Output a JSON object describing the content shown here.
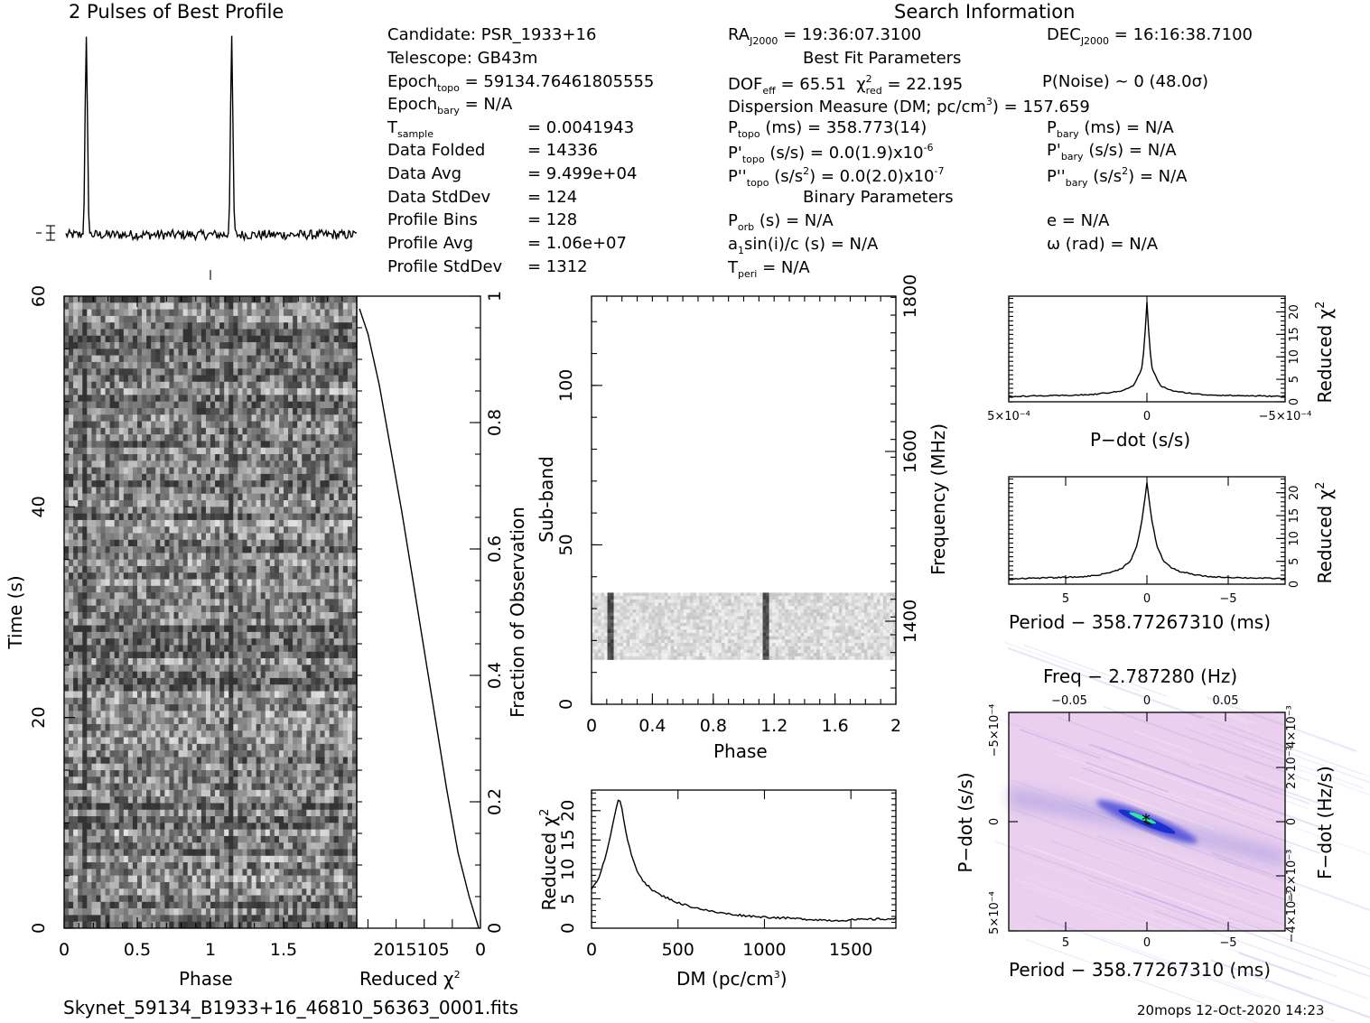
{
  "title": "2 Pulses of Best Profile",
  "search_title": "Search Information",
  "filename": "Skynet_59134_B1933+16_46810_56363_0001.fits",
  "footer": "20mops 12-Oct-2020 14:23",
  "info": {
    "candidate": "Candidate:  PSR_1933+16",
    "telescope": "Telescope:  GB43m",
    "epoch_topo_val": "= 59134.76461805555",
    "epoch_bary_val": "= N/A",
    "left_table": [
      {
        "label": "Data Folded",
        "val": "=   14336"
      },
      {
        "label": "Data Avg",
        "val": "=   9.499e+04"
      },
      {
        "label": "Data StdDev",
        "val": "=   124"
      },
      {
        "label": "Profile Bins",
        "val": "=   128"
      },
      {
        "label": "Profile Avg",
        "val": "=   1.06e+07"
      },
      {
        "label": "Profile StdDev",
        "val": "=   1312"
      }
    ],
    "tsample_val": "=   0.0041943",
    "ra": "= 19:36:07.3100",
    "dec": "= 16:16:38.7100",
    "best_fit": "Best Fit Parameters",
    "dof": "= 65.51",
    "chi2red": "= 22.195",
    "pnoise": "P(Noise) ~ 0   (48.0σ)",
    "dm_text": "Dispersion Measure (DM; pc/cm",
    "dm_val": ") = 157.659",
    "ptopo": "(ms) =  358.773(14)",
    "pbary": "(ms) = N/A",
    "pdtopo": "(s/s) = 0.0(1.9)x10",
    "pdtopo_exp": "-6",
    "pdbary": "(s/s) = N/A",
    "pddtopo_a": "(s/s",
    "pddtopo_b": ") = 0.0(2.0)x10",
    "pddtopo_exp": "-7",
    "pddbary_a": "(s/s",
    "pddbary_b": ") = N/A",
    "binary": "Binary Parameters",
    "porb": "(s) = N/A",
    "a1": "a",
    "a1b": "sin(i)/c (s) = N/A",
    "tperi": "= N/A",
    "ecc": "e = N/A",
    "omega": "ω (rad) = N/A"
  },
  "axes": {
    "time_label": "Time (s)",
    "phase_label": "Phase",
    "redchi_label": "Reduced χ",
    "frac_label": "Fraction of Observation",
    "subband_label": "Sub-band",
    "freq_label": "Frequency (MHz)",
    "dm_label": "DM (pc/cm",
    "pdot_label": "P−dot (s/s)",
    "period_label": "Period − 358.77267310 (ms)",
    "freq_top_label": "Freq − 2.787280 (Hz)",
    "fdot_label": "F−dot (Hz/s)"
  },
  "colors": {
    "grey_map": "#7a7a7a",
    "ppdot_bg": "#ead0ee",
    "ppdot_peak": "#1a2fd0",
    "ppdot_core": "#2fe7a0"
  },
  "chart_data": [
    {
      "id": "profile",
      "type": "line",
      "title": "2 Pulses of Best Profile",
      "xlabel": "Phase",
      "xlim": [
        0,
        2
      ],
      "peaks_at_phase": [
        0.14,
        1.14
      ],
      "baseline_level": 0.08,
      "peak_level": 1.0
    },
    {
      "id": "time_phase",
      "type": "heatmap",
      "xlabel": "Phase",
      "ylabel": "Time (s)",
      "x_ticks": [
        "0",
        "0.5",
        "1",
        "1.5"
      ],
      "y_ticks": [
        "0",
        "20",
        "40",
        "60"
      ],
      "xlim": [
        0,
        2
      ],
      "ylim": [
        0,
        60
      ],
      "pulse_phases": [
        0.13,
        1.14
      ]
    },
    {
      "id": "chi_vs_time",
      "type": "line",
      "xlabel": "Reduced χ2",
      "x_ticks": [
        "20",
        "15",
        "10",
        "5",
        "0"
      ],
      "ylabel": "Fraction of Observation",
      "y_ticks": [
        "0",
        "0.2",
        "0.4",
        "0.6",
        "0.8",
        "1"
      ],
      "xlim": [
        22,
        0
      ],
      "ylim": [
        0,
        1
      ],
      "x": [
        0.3,
        2,
        4,
        6,
        8,
        10,
        12,
        14,
        16,
        18,
        20,
        21.5
      ],
      "y": [
        0.0,
        0.05,
        0.12,
        0.22,
        0.33,
        0.44,
        0.55,
        0.66,
        0.76,
        0.86,
        0.94,
        0.98
      ]
    },
    {
      "id": "subband_phase",
      "type": "heatmap",
      "xlabel": "Phase",
      "ylabel": "Sub-band",
      "y2label": "Frequency (MHz)",
      "x_ticks": [
        "0",
        "0.4",
        "0.8",
        "1.2",
        "1.6",
        "2"
      ],
      "y_ticks": [
        "0",
        "50",
        "100"
      ],
      "y2_ticks": [
        "1400",
        "1600",
        "1800"
      ],
      "xlim": [
        0,
        2
      ],
      "ylim": [
        0,
        128
      ],
      "filled_subbands": [
        14,
        35
      ],
      "pulse_phases": [
        0.13,
        1.14
      ]
    },
    {
      "id": "dm_curve",
      "type": "line",
      "xlabel": "DM (pc/cm3)",
      "ylabel": "Reduced χ2",
      "x_ticks": [
        "0",
        "500",
        "1000",
        "1500"
      ],
      "y_ticks": [
        "0",
        "5",
        "10",
        "15",
        "20"
      ],
      "xlim": [
        0,
        1760
      ],
      "ylim": [
        0,
        23.5
      ],
      "x": [
        0,
        40,
        80,
        110,
        135,
        157,
        175,
        200,
        230,
        260,
        300,
        350,
        400,
        450,
        500,
        600,
        700,
        800,
        900,
        1000,
        1200,
        1400,
        1600,
        1760
      ],
      "y": [
        6.5,
        8.5,
        12,
        16,
        19.5,
        22.2,
        20.5,
        16,
        12.5,
        10,
        8,
        6.5,
        5.6,
        5.0,
        4.3,
        3.5,
        2.8,
        2.4,
        2.1,
        1.9,
        1.6,
        1.3,
        1.5,
        1.6
      ]
    },
    {
      "id": "pdot_curve",
      "type": "line",
      "xlabel": "P−dot (s/s)",
      "ylabel": "Reduced χ2",
      "x_ticks": [
        "5×10⁻⁴",
        "0",
        "−5×10⁻⁴"
      ],
      "y_ticks": [
        "0",
        "5",
        "10",
        "15",
        "20"
      ],
      "xlim": [
        0.0005,
        -0.0005
      ],
      "ylim": [
        0,
        23.5
      ],
      "x": [
        0.0005,
        0.0003,
        0.0002,
        0.0001,
        5e-05,
        2e-05,
        1e-05,
        0,
        -1e-05,
        -2e-05,
        -5e-05,
        -0.0001,
        -0.0002,
        -0.0003,
        -0.0005
      ],
      "y": [
        1.2,
        1.4,
        1.6,
        2.3,
        3.5,
        7,
        12,
        22.2,
        12,
        7,
        3.5,
        2.3,
        1.6,
        1.4,
        1.2
      ]
    },
    {
      "id": "period_curve",
      "type": "line",
      "xlabel": "Period − 358.77267310 (ms)",
      "ylabel": "Reduced χ2",
      "x_ticks": [
        "5",
        "0",
        "−5"
      ],
      "y_ticks": [
        "0",
        "5",
        "10",
        "15",
        "20"
      ],
      "xlim": [
        8.5,
        -8.5
      ],
      "ylim": [
        0,
        23.5
      ],
      "x": [
        8.5,
        6,
        4,
        3,
        2,
        1.5,
        1,
        0.6,
        0.3,
        0,
        -0.3,
        -0.6,
        -1,
        -1.5,
        -2,
        -3,
        -4,
        -6,
        -8.5
      ],
      "y": [
        1.2,
        1.4,
        1.6,
        2.0,
        2.8,
        3.6,
        5.2,
        8.5,
        14,
        22.2,
        14,
        8.5,
        5.2,
        3.6,
        2.8,
        2.0,
        1.6,
        1.4,
        1.2
      ]
    },
    {
      "id": "ppdot_plane",
      "type": "heatmap",
      "xlabel": "Period − 358.77267310 (ms)",
      "ylabel": "P−dot (s/s)",
      "top_label": "Freq − 2.787280 (Hz)",
      "right_label": "F−dot (Hz/s)",
      "x_ticks": [
        "5",
        "0",
        "−5"
      ],
      "top_ticks": [
        "−0.05",
        "0",
        "0.05"
      ],
      "y_ticks": [
        "5×10⁻⁴",
        "0",
        "−5×10⁻⁴"
      ],
      "right_ticks": [
        "−4×10⁻³",
        "−2×10⁻³",
        "0",
        "2×10⁻³",
        "4×10⁻³"
      ],
      "xlim": [
        8.5,
        -8.5
      ],
      "ylim": [
        0.0005,
        -0.0005
      ],
      "peak": [
        0,
        0
      ]
    }
  ]
}
